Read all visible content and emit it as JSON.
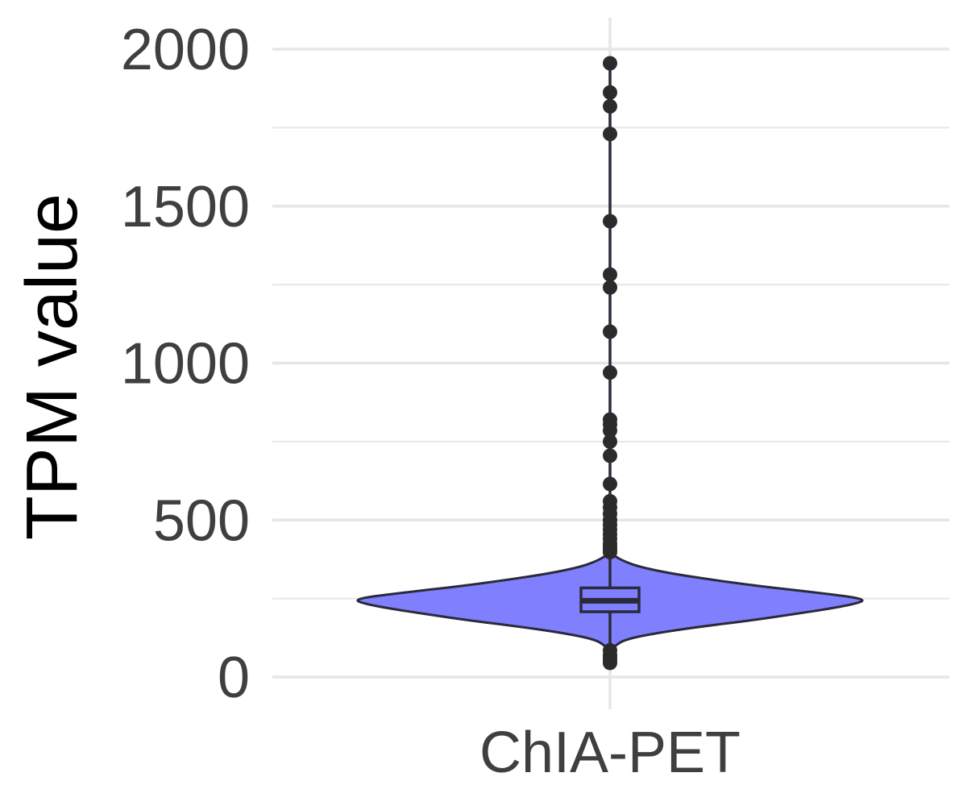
{
  "chart_data": {
    "type": "violin",
    "title": "",
    "xlabel": "",
    "ylabel": "TPM value",
    "ylim": [
      -80,
      2050
    ],
    "yticks": [
      0,
      500,
      1000,
      1500,
      2000
    ],
    "ytick_labels": [
      "0",
      "500",
      "1000",
      "1500",
      "2000"
    ],
    "minor_yticks": [
      250,
      750,
      1250,
      1750
    ],
    "grid": true,
    "legend": "none",
    "categories": [
      "ChIA-PET"
    ],
    "colors": {
      "violin_fill": "#8080ff",
      "outline": "#2a2a3a",
      "grid": "#e6e6e6",
      "tick_text": "#3f3f3f"
    },
    "box": {
      "q1": 208,
      "median": 243,
      "q3": 284,
      "whisker_low": 95,
      "whisker_high": 392
    },
    "whisker_line_range": [
      50,
      1955
    ],
    "violin_density": [
      {
        "y": 80,
        "w": 0.0
      },
      {
        "y": 100,
        "w": 0.02
      },
      {
        "y": 120,
        "w": 0.06
      },
      {
        "y": 140,
        "w": 0.18
      },
      {
        "y": 160,
        "w": 0.35
      },
      {
        "y": 180,
        "w": 0.55
      },
      {
        "y": 200,
        "w": 0.72
      },
      {
        "y": 220,
        "w": 0.88
      },
      {
        "y": 235,
        "w": 0.97
      },
      {
        "y": 245,
        "w": 1.0
      },
      {
        "y": 255,
        "w": 0.95
      },
      {
        "y": 270,
        "w": 0.8
      },
      {
        "y": 290,
        "w": 0.58
      },
      {
        "y": 310,
        "w": 0.4
      },
      {
        "y": 330,
        "w": 0.24
      },
      {
        "y": 350,
        "w": 0.12
      },
      {
        "y": 370,
        "w": 0.05
      },
      {
        "y": 390,
        "w": 0.01
      },
      {
        "y": 400,
        "w": 0.0
      }
    ],
    "outliers": [
      1955,
      1862,
      1818,
      1730,
      1452,
      1282,
      1241,
      1100,
      970,
      820,
      805,
      785,
      750,
      705,
      615,
      560,
      540,
      520,
      500,
      485,
      470,
      455,
      440,
      425,
      415,
      405,
      398,
      85,
      70,
      60,
      50,
      45
    ]
  }
}
